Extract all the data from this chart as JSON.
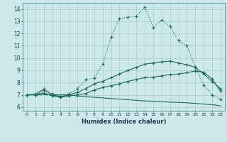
{
  "xlabel": "Humidex (Indice chaleur)",
  "xlim": [
    -0.5,
    23.5
  ],
  "ylim": [
    5.7,
    14.5
  ],
  "xticks": [
    0,
    1,
    2,
    3,
    4,
    5,
    6,
    7,
    8,
    9,
    10,
    11,
    12,
    13,
    14,
    15,
    16,
    17,
    18,
    19,
    20,
    21,
    22,
    23
  ],
  "yticks": [
    6,
    7,
    8,
    9,
    10,
    11,
    12,
    13,
    14
  ],
  "bg_color": "#cde8e8",
  "line_color": "#1a6b5a",
  "grid_color": "#aacccc",
  "curve1_x": [
    0,
    1,
    2,
    3,
    4,
    5,
    6,
    7,
    8,
    9,
    10,
    11,
    12,
    13,
    14,
    15,
    16,
    17,
    18,
    19,
    20,
    21,
    22,
    23
  ],
  "curve1_y": [
    7.0,
    7.1,
    7.5,
    7.1,
    6.85,
    7.1,
    7.5,
    8.25,
    8.35,
    9.5,
    11.7,
    13.2,
    13.35,
    13.4,
    14.15,
    12.5,
    13.1,
    12.6,
    11.45,
    11.0,
    9.3,
    7.8,
    7.0,
    6.65
  ],
  "curve2_x": [
    0,
    1,
    2,
    3,
    4,
    5,
    6,
    7,
    8,
    9,
    10,
    11,
    12,
    13,
    14,
    15,
    16,
    17,
    18,
    19,
    20,
    21,
    22,
    23
  ],
  "curve2_y": [
    7.0,
    7.0,
    7.4,
    7.0,
    6.85,
    7.0,
    7.2,
    7.5,
    7.9,
    8.1,
    8.4,
    8.7,
    9.0,
    9.25,
    9.5,
    9.6,
    9.7,
    9.75,
    9.6,
    9.45,
    9.25,
    8.7,
    8.1,
    7.5
  ],
  "curve3_x": [
    0,
    1,
    2,
    3,
    4,
    5,
    6,
    7,
    8,
    9,
    10,
    11,
    12,
    13,
    14,
    15,
    16,
    17,
    18,
    19,
    20,
    21,
    22,
    23
  ],
  "curve3_y": [
    7.0,
    7.0,
    7.15,
    6.9,
    6.8,
    6.9,
    7.0,
    7.1,
    7.4,
    7.6,
    7.75,
    7.9,
    8.1,
    8.25,
    8.4,
    8.45,
    8.55,
    8.65,
    8.7,
    8.8,
    8.95,
    8.85,
    8.3,
    7.3
  ],
  "curve4_x": [
    0,
    1,
    2,
    3,
    4,
    5,
    6,
    7,
    8,
    9,
    10,
    11,
    12,
    13,
    14,
    15,
    16,
    17,
    18,
    19,
    20,
    21,
    22,
    23
  ],
  "curve4_y": [
    7.0,
    7.0,
    7.0,
    7.0,
    7.0,
    7.0,
    6.9,
    6.85,
    6.8,
    6.75,
    6.7,
    6.65,
    6.6,
    6.55,
    6.5,
    6.48,
    6.45,
    6.4,
    6.38,
    6.35,
    6.3,
    6.25,
    6.2,
    6.1
  ]
}
